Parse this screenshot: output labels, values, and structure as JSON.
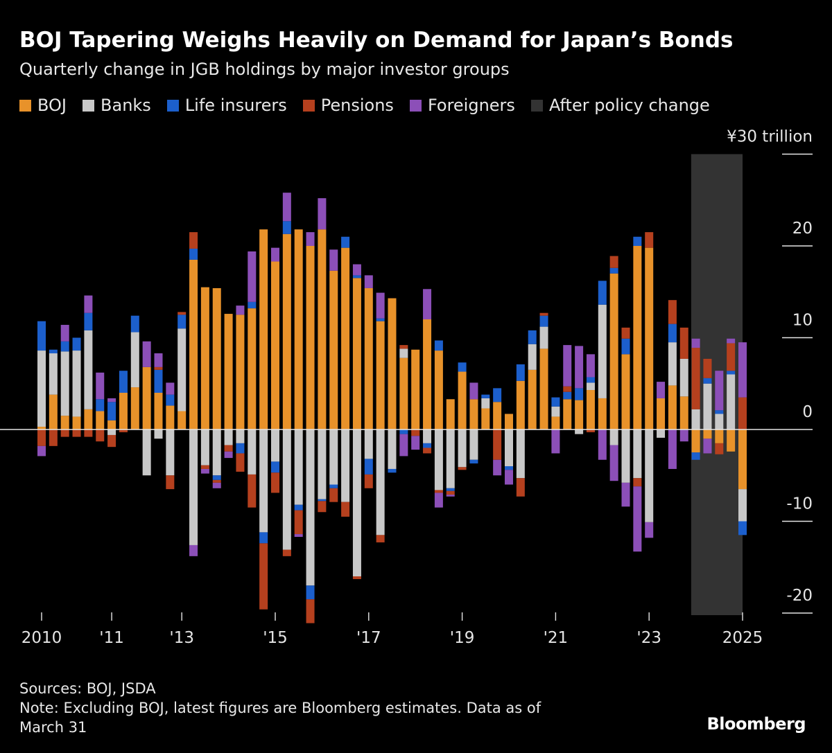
{
  "title": "BOJ Tapering Weighs Heavily on Demand for Japan’s Bonds",
  "subtitle": "Quarterly change in JGB holdings by major investor groups",
  "legend": [
    {
      "label": "BOJ",
      "color": "#e8922a"
    },
    {
      "label": "Banks",
      "color": "#c8c8c8"
    },
    {
      "label": "Life insurers",
      "color": "#1c5fcc"
    },
    {
      "label": "Pensions",
      "color": "#b5401e"
    },
    {
      "label": "Foreigners",
      "color": "#8c4fb8"
    },
    {
      "label": "After policy change",
      "color": "#333333"
    }
  ],
  "footer": {
    "sources": "Sources: BOJ, JSDA",
    "note_line1": "Note: Excluding BOJ, latest figures are Bloomberg estimates. Data as of",
    "note_line2": "March 31"
  },
  "brand": "Bloomberg",
  "chart_data": {
    "type": "bar",
    "stacked": true,
    "unit": "¥ trillion",
    "ylim": [
      -20,
      30
    ],
    "yticks": [
      {
        "value": 30,
        "label": "¥30 trillion"
      },
      {
        "value": 20,
        "label": "20"
      },
      {
        "value": 10,
        "label": "10"
      },
      {
        "value": 0,
        "label": "0"
      },
      {
        "value": -10,
        "label": "-10"
      },
      {
        "value": -20,
        "label": "-20"
      }
    ],
    "xticks": [
      {
        "index": 0,
        "label": "2010"
      },
      {
        "index": 6,
        "label": "'11"
      },
      {
        "index": 12,
        "label": "'13"
      },
      {
        "index": 20,
        "label": "'15"
      },
      {
        "index": 28,
        "label": "'17"
      },
      {
        "index": 36,
        "label": "'19"
      },
      {
        "index": 44,
        "label": "'21"
      },
      {
        "index": 52,
        "label": "'23"
      },
      {
        "index": 60,
        "label": "2025"
      }
    ],
    "shaded_region": {
      "label": "After policy change",
      "start_index": 55.6,
      "end_index": 60
    },
    "series": [
      {
        "name": "BOJ",
        "color": "#e8922a",
        "values": [
          0.3,
          3.8,
          1.5,
          1.4,
          2.2,
          2.0,
          1.0,
          4.0,
          4.6,
          6.8,
          4.0,
          2.6,
          2.0,
          18.5,
          15.5,
          15.4,
          12.6,
          12.5,
          13.2,
          21.8,
          18.3,
          21.3,
          21.8,
          20.0,
          21.8,
          17.3,
          19.8,
          16.5,
          15.4,
          11.8,
          14.3,
          7.8,
          8.7,
          12.0,
          8.6,
          3.3,
          6.3,
          3.3,
          2.3,
          3.0,
          1.7,
          5.3,
          6.5,
          8.8,
          1.4,
          3.3,
          3.2,
          4.3,
          3.4,
          17.0,
          8.2,
          20.0,
          19.8,
          3.4,
          4.8,
          3.6,
          -2.5,
          -1.0,
          -1.5,
          -2.4,
          -6.5
        ]
      },
      {
        "name": "Banks",
        "color": "#c8c8c8",
        "values": [
          8.3,
          4.5,
          7.0,
          7.2,
          8.6,
          0,
          -0.6,
          0,
          6.0,
          -5.0,
          -1.0,
          -5.0,
          9.0,
          -12.6,
          -3.9,
          -5.0,
          -1.7,
          -1.5,
          -4.9,
          -11.2,
          -3.5,
          -13.1,
          -8.2,
          -17.0,
          -7.6,
          -6.0,
          -7.9,
          -16.0,
          -3.2,
          -11.5,
          -4.3,
          1.0,
          0,
          -1.5,
          -6.6,
          -6.4,
          -4.1,
          -3.3,
          1.1,
          0,
          -4.0,
          -5.3,
          2.8,
          2.4,
          1.1,
          0,
          -0.5,
          0.8,
          10.2,
          -1.7,
          -5.8,
          -5.3,
          -10.1,
          -0.9,
          4.7,
          4.1,
          2.2,
          5.0,
          1.7,
          6.0,
          -3.5
        ]
      },
      {
        "name": "Life insurers",
        "color": "#1c5fcc",
        "values": [
          3.2,
          0.4,
          1.1,
          1.4,
          1.9,
          1.3,
          2.0,
          2.4,
          1.8,
          0,
          2.5,
          1.2,
          1.5,
          1.2,
          0,
          -0.5,
          0,
          -1.1,
          0.7,
          -1.2,
          -1.2,
          1.4,
          -0.6,
          -1.5,
          -0.2,
          -0.4,
          1.2,
          0.3,
          -1.7,
          0.3,
          -0.4,
          -0.5,
          0,
          -0.5,
          1.1,
          -0.3,
          1.0,
          -0.4,
          0.4,
          1.5,
          -0.4,
          1.8,
          1.5,
          1.2,
          1.0,
          0.8,
          1.3,
          0.6,
          2.6,
          0.6,
          1.7,
          1.0,
          0,
          0,
          2.0,
          0,
          -0.8,
          0.6,
          0.4,
          0.4,
          -1.5
        ]
      },
      {
        "name": "Pensions",
        "color": "#b5401e",
        "values": [
          -1.8,
          -1.8,
          -0.8,
          -0.8,
          -0.8,
          -1.3,
          -1.3,
          -0.3,
          0,
          0,
          0.3,
          -1.5,
          0.3,
          1.8,
          -0.4,
          -0.3,
          -0.7,
          -2.0,
          -3.6,
          -7.2,
          -2.2,
          -0.7,
          -2.6,
          -2.6,
          -1.2,
          -1.5,
          -1.6,
          -0.3,
          -1.5,
          -0.8,
          0,
          0.4,
          -0.7,
          -0.6,
          -0.3,
          -0.4,
          -0.3,
          0,
          0,
          -3.3,
          0,
          -2.0,
          0,
          0.3,
          0,
          0.6,
          0,
          -0.3,
          0,
          1.3,
          1.2,
          -0.9,
          1.7,
          0,
          2.6,
          3.4,
          6.7,
          2.1,
          -1.2,
          3.0,
          3.5
        ]
      },
      {
        "name": "Foreigners",
        "color": "#8c4fb8",
        "values": [
          -1.1,
          0,
          1.8,
          0,
          1.9,
          2.9,
          0.4,
          0,
          0,
          2.8,
          1.5,
          1.3,
          0,
          -1.2,
          -0.5,
          -0.6,
          -0.7,
          1.0,
          5.5,
          0,
          1.5,
          3.1,
          -0.3,
          1.5,
          3.4,
          2.3,
          0,
          1.2,
          1.4,
          2.8,
          0,
          -2.4,
          -1.5,
          3.3,
          -1.6,
          -0.2,
          0,
          1.8,
          0,
          -1.7,
          -1.6,
          0,
          0,
          0,
          -2.6,
          4.5,
          4.6,
          2.5,
          -3.3,
          -3.9,
          -2.6,
          -7.1,
          -1.7,
          1.8,
          -4.3,
          -1.3,
          1.0,
          -1.6,
          4.3,
          0.5,
          6.0
        ]
      }
    ]
  }
}
